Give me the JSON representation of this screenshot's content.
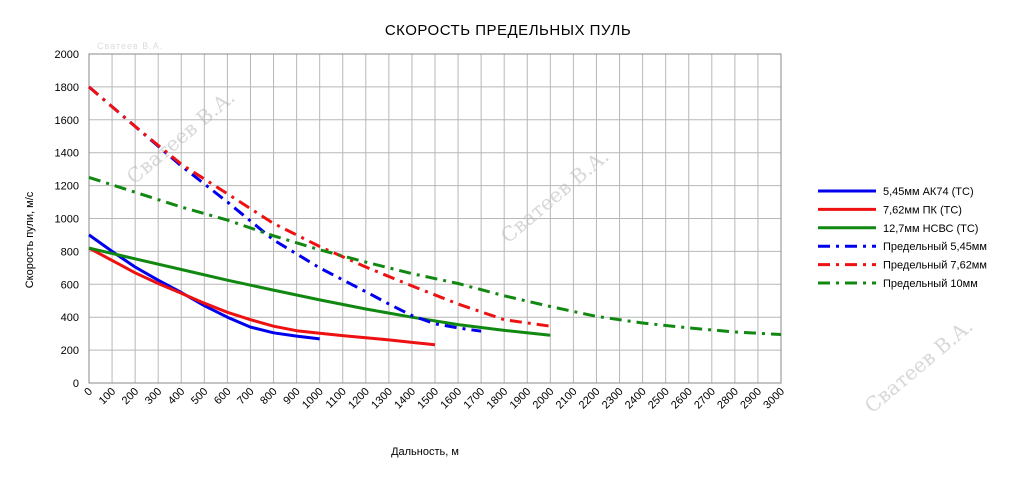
{
  "chart_data": {
    "type": "line",
    "title": "СКОРОСТЬ  ПРЕДЕЛЬНЫХ  ПУЛЬ",
    "xlabel": "Дальность, м",
    "ylabel": "Скорость пули, м/с",
    "xlim": [
      0,
      3000
    ],
    "ylim": [
      0,
      2000
    ],
    "x_ticks": [
      "0",
      "100",
      "200",
      "300",
      "400",
      "500",
      "600",
      "700",
      "800",
      "900",
      "1000",
      "1100",
      "1200",
      "1300",
      "1400",
      "1500",
      "1600",
      "1700",
      "1800",
      "1900",
      "2000",
      "2100",
      "2200",
      "2300",
      "2400",
      "2500",
      "2600",
      "2700",
      "2800",
      "2900",
      "3000"
    ],
    "y_ticks": [
      "0",
      "200",
      "400",
      "600",
      "800",
      "1000",
      "1200",
      "1400",
      "1600",
      "1800",
      "2000"
    ],
    "grid": true,
    "legend_position": "right",
    "watermark": "Сватеев В.А.",
    "series": [
      {
        "name": "5,45мм АК74 (ТС)",
        "color": "#0000ee",
        "style": "solid",
        "points": [
          [
            0,
            900
          ],
          [
            100,
            800
          ],
          [
            200,
            705
          ],
          [
            300,
            625
          ],
          [
            400,
            550
          ],
          [
            500,
            470
          ],
          [
            600,
            400
          ],
          [
            700,
            340
          ],
          [
            800,
            305
          ],
          [
            900,
            285
          ],
          [
            1000,
            268
          ]
        ]
      },
      {
        "name": "7,62мм ПК (ТС)",
        "color": "#ee1111",
        "style": "solid",
        "points": [
          [
            0,
            820
          ],
          [
            100,
            745
          ],
          [
            200,
            670
          ],
          [
            300,
            605
          ],
          [
            400,
            545
          ],
          [
            500,
            485
          ],
          [
            600,
            430
          ],
          [
            700,
            385
          ],
          [
            800,
            345
          ],
          [
            900,
            318
          ],
          [
            1000,
            302
          ],
          [
            1100,
            288
          ],
          [
            1200,
            275
          ],
          [
            1300,
            262
          ],
          [
            1400,
            247
          ],
          [
            1500,
            232
          ]
        ]
      },
      {
        "name": "12,7мм НСВС (ТС)",
        "color": "#118811",
        "style": "solid",
        "points": [
          [
            0,
            820
          ],
          [
            200,
            755
          ],
          [
            400,
            690
          ],
          [
            600,
            625
          ],
          [
            800,
            565
          ],
          [
            1000,
            505
          ],
          [
            1200,
            450
          ],
          [
            1400,
            400
          ],
          [
            1600,
            355
          ],
          [
            1800,
            320
          ],
          [
            2000,
            290
          ]
        ]
      },
      {
        "name": "Предельный 5,45мм",
        "color": "#0000ee",
        "style": "dashdot",
        "points": [
          [
            0,
            1800
          ],
          [
            200,
            1560
          ],
          [
            400,
            1320
          ],
          [
            600,
            1100
          ],
          [
            800,
            870
          ],
          [
            1000,
            700
          ],
          [
            1200,
            555
          ],
          [
            1300,
            480
          ],
          [
            1400,
            410
          ],
          [
            1500,
            360
          ],
          [
            1600,
            335
          ],
          [
            1700,
            315
          ]
        ]
      },
      {
        "name": "Предельный 7,62мм",
        "color": "#ee1111",
        "style": "dashdot",
        "points": [
          [
            0,
            1800
          ],
          [
            200,
            1560
          ],
          [
            400,
            1330
          ],
          [
            600,
            1150
          ],
          [
            800,
            970
          ],
          [
            1000,
            830
          ],
          [
            1200,
            705
          ],
          [
            1400,
            590
          ],
          [
            1600,
            480
          ],
          [
            1800,
            385
          ],
          [
            2000,
            345
          ]
        ]
      },
      {
        "name": "Предельный 10мм",
        "color": "#118811",
        "style": "dashdot",
        "points": [
          [
            0,
            1250
          ],
          [
            200,
            1160
          ],
          [
            400,
            1070
          ],
          [
            600,
            990
          ],
          [
            800,
            895
          ],
          [
            1000,
            810
          ],
          [
            1200,
            735
          ],
          [
            1400,
            665
          ],
          [
            1600,
            605
          ],
          [
            1800,
            530
          ],
          [
            2000,
            465
          ],
          [
            2200,
            405
          ],
          [
            2400,
            365
          ],
          [
            2600,
            335
          ],
          [
            2800,
            310
          ],
          [
            3000,
            295
          ]
        ]
      }
    ]
  }
}
